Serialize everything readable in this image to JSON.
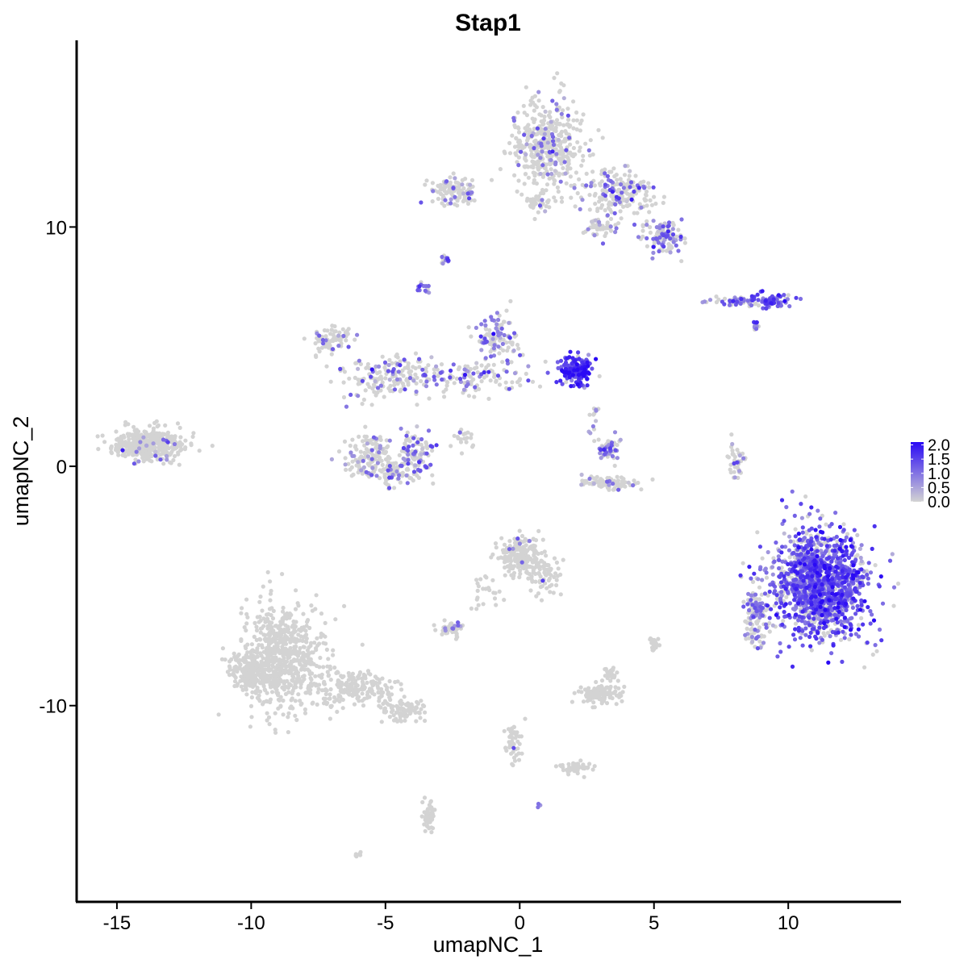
{
  "chart_data": {
    "type": "scatter",
    "title": "Stap1",
    "xlabel": "umapNC_1",
    "ylabel": "umapNC_2",
    "xlim": [
      -16.5,
      14.2
    ],
    "ylim": [
      -18.2,
      17.8
    ],
    "x_ticks": [
      -15,
      -10,
      -5,
      0,
      5,
      10
    ],
    "x_tick_labels": [
      "-15",
      "-10",
      "-5",
      "0",
      "5",
      "10"
    ],
    "y_ticks": [
      -10,
      0,
      10
    ],
    "y_tick_labels": [
      "-10",
      "0",
      "10"
    ],
    "grid": false,
    "color_scale": {
      "low_color": "#d3d3d3",
      "high_color": "#2a0af5",
      "min": 0.0,
      "max": 2.1,
      "breaks": [
        0.0,
        0.5,
        1.0,
        1.5,
        2.0
      ],
      "break_labels": [
        "0.0",
        "0.5",
        "1.0",
        "1.5",
        "2.0"
      ],
      "legend_position": "right"
    },
    "clusters": [
      {
        "cx": -13.8,
        "cy": 0.9,
        "sx": 0.9,
        "sy": 0.45,
        "n": 420,
        "expr_frac": 0.05,
        "expr_mean": 0.8
      },
      {
        "cx": -8.8,
        "cy": -8.0,
        "sx": 1.0,
        "sy": 1.5,
        "n": 650,
        "expr_frac": 0.005,
        "expr_mean": 0.8
      },
      {
        "cx": -10.0,
        "cy": -8.6,
        "sx": 0.5,
        "sy": 0.5,
        "n": 180,
        "expr_frac": 0.0,
        "expr_mean": 0.0
      },
      {
        "cx": -6.2,
        "cy": -9.3,
        "sx": 1.0,
        "sy": 0.5,
        "n": 200,
        "expr_frac": 0.005,
        "expr_mean": 0.8
      },
      {
        "cx": -4.3,
        "cy": -10.2,
        "sx": 0.55,
        "sy": 0.3,
        "n": 90,
        "expr_frac": 0.0,
        "expr_mean": 0.0
      },
      {
        "cx": 1.0,
        "cy": 13.5,
        "sx": 0.9,
        "sy": 1.2,
        "n": 430,
        "expr_frac": 0.15,
        "expr_mean": 0.9
      },
      {
        "cx": 3.8,
        "cy": 11.4,
        "sx": 1.0,
        "sy": 0.6,
        "n": 200,
        "expr_frac": 0.25,
        "expr_mean": 1.0
      },
      {
        "cx": 5.4,
        "cy": 9.6,
        "sx": 0.5,
        "sy": 0.4,
        "n": 120,
        "expr_frac": 0.3,
        "expr_mean": 1.0
      },
      {
        "cx": -2.5,
        "cy": 11.5,
        "sx": 0.6,
        "sy": 0.4,
        "n": 110,
        "expr_frac": 0.15,
        "expr_mean": 0.9
      },
      {
        "cx": 0.7,
        "cy": 11.0,
        "sx": 0.5,
        "sy": 0.3,
        "n": 40,
        "expr_frac": 0.1,
        "expr_mean": 0.8
      },
      {
        "cx": 3.0,
        "cy": 10.0,
        "sx": 0.4,
        "sy": 0.3,
        "n": 40,
        "expr_frac": 0.2,
        "expr_mean": 0.8
      },
      {
        "cx": -3.6,
        "cy": 7.4,
        "sx": 0.15,
        "sy": 0.15,
        "n": 14,
        "expr_frac": 0.6,
        "expr_mean": 1.1
      },
      {
        "cx": -2.8,
        "cy": 8.6,
        "sx": 0.12,
        "sy": 0.12,
        "n": 12,
        "expr_frac": 0.7,
        "expr_mean": 1.2
      },
      {
        "cx": 2.1,
        "cy": 4.0,
        "sx": 0.4,
        "sy": 0.4,
        "n": 170,
        "expr_frac": 0.85,
        "expr_mean": 1.6
      },
      {
        "cx": -0.9,
        "cy": 5.3,
        "sx": 0.5,
        "sy": 0.7,
        "n": 110,
        "expr_frac": 0.4,
        "expr_mean": 1.0
      },
      {
        "cx": -1.5,
        "cy": 3.7,
        "sx": 1.3,
        "sy": 0.4,
        "n": 110,
        "expr_frac": 0.3,
        "expr_mean": 1.0
      },
      {
        "cx": -4.8,
        "cy": 3.7,
        "sx": 1.3,
        "sy": 0.6,
        "n": 170,
        "expr_frac": 0.25,
        "expr_mean": 1.0
      },
      {
        "cx": -7.0,
        "cy": 5.3,
        "sx": 0.6,
        "sy": 0.4,
        "n": 70,
        "expr_frac": 0.15,
        "expr_mean": 0.9
      },
      {
        "cx": -5.6,
        "cy": 0.4,
        "sx": 0.6,
        "sy": 0.6,
        "n": 140,
        "expr_frac": 0.2,
        "expr_mean": 0.9
      },
      {
        "cx": -3.9,
        "cy": 0.5,
        "sx": 0.45,
        "sy": 0.6,
        "n": 120,
        "expr_frac": 0.3,
        "expr_mean": 1.0
      },
      {
        "cx": -4.7,
        "cy": -0.3,
        "sx": 0.5,
        "sy": 0.3,
        "n": 60,
        "expr_frac": 0.2,
        "expr_mean": 0.9
      },
      {
        "cx": -2.0,
        "cy": 1.2,
        "sx": 0.5,
        "sy": 0.4,
        "n": 20,
        "expr_frac": 0.2,
        "expr_mean": 0.9
      },
      {
        "cx": 3.3,
        "cy": 0.7,
        "sx": 0.25,
        "sy": 0.35,
        "n": 50,
        "expr_frac": 0.5,
        "expr_mean": 1.0
      },
      {
        "cx": 3.4,
        "cy": -0.7,
        "sx": 0.8,
        "sy": 0.2,
        "n": 80,
        "expr_frac": 0.15,
        "expr_mean": 0.8
      },
      {
        "cx": 2.8,
        "cy": 2.0,
        "sx": 0.15,
        "sy": 0.5,
        "n": 12,
        "expr_frac": 0.4,
        "expr_mean": 1.0
      },
      {
        "cx": 0.0,
        "cy": -3.7,
        "sx": 0.5,
        "sy": 0.6,
        "n": 220,
        "expr_frac": 0.03,
        "expr_mean": 0.9
      },
      {
        "cx": 0.9,
        "cy": -4.6,
        "sx": 0.35,
        "sy": 0.5,
        "n": 70,
        "expr_frac": 0.02,
        "expr_mean": 0.9
      },
      {
        "cx": -2.5,
        "cy": -6.8,
        "sx": 0.3,
        "sy": 0.2,
        "n": 50,
        "expr_frac": 0.1,
        "expr_mean": 1.0
      },
      {
        "cx": -1.2,
        "cy": -5.3,
        "sx": 0.4,
        "sy": 0.5,
        "n": 25,
        "expr_frac": 0.0,
        "expr_mean": 0.0
      },
      {
        "cx": 3.0,
        "cy": -9.5,
        "sx": 0.5,
        "sy": 0.25,
        "n": 110,
        "expr_frac": 0.0,
        "expr_mean": 0.0
      },
      {
        "cx": 3.4,
        "cy": -8.7,
        "sx": 0.2,
        "sy": 0.2,
        "n": 25,
        "expr_frac": 0.0,
        "expr_mean": 0.0
      },
      {
        "cx": 5.0,
        "cy": -7.4,
        "sx": 0.12,
        "sy": 0.2,
        "n": 25,
        "expr_frac": 0.0,
        "expr_mean": 0.0
      },
      {
        "cx": 2.1,
        "cy": -12.6,
        "sx": 0.4,
        "sy": 0.15,
        "n": 50,
        "expr_frac": 0.0,
        "expr_mean": 0.0
      },
      {
        "cx": -0.2,
        "cy": -11.6,
        "sx": 0.2,
        "sy": 0.6,
        "n": 45,
        "expr_frac": 0.02,
        "expr_mean": 0.9
      },
      {
        "cx": -3.4,
        "cy": -14.6,
        "sx": 0.15,
        "sy": 0.4,
        "n": 45,
        "expr_frac": 0.0,
        "expr_mean": 0.0
      },
      {
        "cx": -6.0,
        "cy": -16.2,
        "sx": 0.1,
        "sy": 0.1,
        "n": 6,
        "expr_frac": 0.0,
        "expr_mean": 0.0
      },
      {
        "cx": 0.7,
        "cy": -14.2,
        "sx": 0.05,
        "sy": 0.05,
        "n": 3,
        "expr_frac": 1.0,
        "expr_mean": 0.9
      },
      {
        "cx": 8.2,
        "cy": 6.9,
        "sx": 0.9,
        "sy": 0.15,
        "n": 70,
        "expr_frac": 0.7,
        "expr_mean": 1.1
      },
      {
        "cx": 9.4,
        "cy": 6.9,
        "sx": 0.5,
        "sy": 0.2,
        "n": 60,
        "expr_frac": 0.8,
        "expr_mean": 1.3
      },
      {
        "cx": 8.8,
        "cy": 5.9,
        "sx": 0.1,
        "sy": 0.15,
        "n": 10,
        "expr_frac": 0.7,
        "expr_mean": 1.2
      },
      {
        "cx": 8.1,
        "cy": 0.2,
        "sx": 0.2,
        "sy": 0.6,
        "n": 40,
        "expr_frac": 0.2,
        "expr_mean": 0.9
      },
      {
        "cx": 11.2,
        "cy": -4.9,
        "sx": 1.15,
        "sy": 1.5,
        "n": 1400,
        "expr_frac": 0.75,
        "expr_mean": 1.3
      },
      {
        "cx": 8.8,
        "cy": -6.2,
        "sx": 0.3,
        "sy": 0.9,
        "n": 130,
        "expr_frac": 0.4,
        "expr_mean": 1.0
      }
    ]
  }
}
